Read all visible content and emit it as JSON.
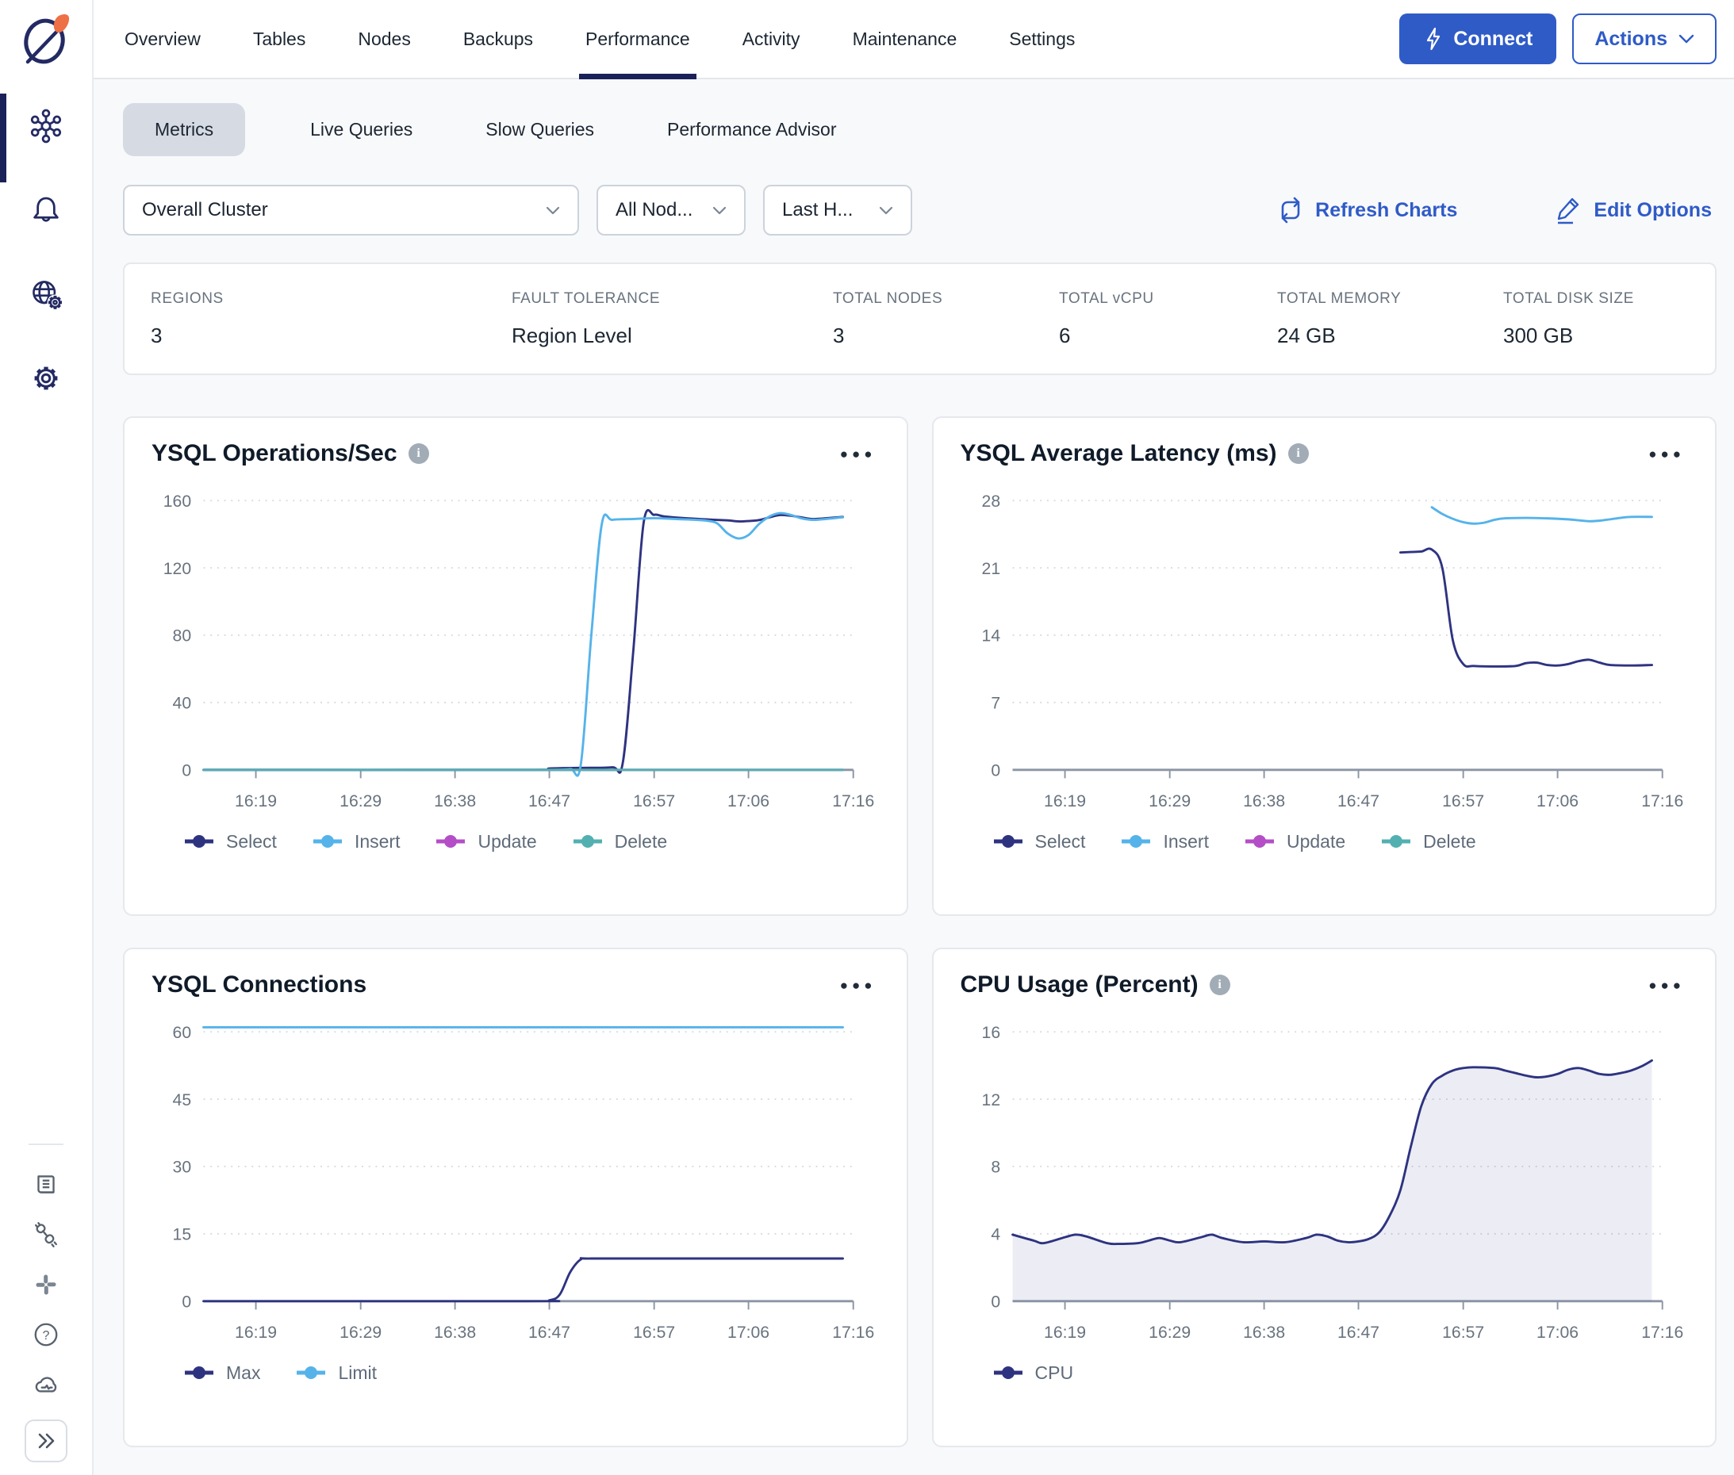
{
  "sidebar": {
    "icons": [
      "yugabyte-logo",
      "clusters-hub",
      "notifications-bell",
      "network-globe-gear",
      "settings-gear",
      "docs-book",
      "integrations-plug",
      "slack",
      "help-question",
      "cloud-status",
      "collapse-sidebar"
    ]
  },
  "topnav": {
    "tabs": [
      {
        "label": "Overview",
        "active": false
      },
      {
        "label": "Tables",
        "active": false
      },
      {
        "label": "Nodes",
        "active": false
      },
      {
        "label": "Backups",
        "active": false
      },
      {
        "label": "Performance",
        "active": true
      },
      {
        "label": "Activity",
        "active": false
      },
      {
        "label": "Maintenance",
        "active": false
      },
      {
        "label": "Settings",
        "active": false
      }
    ],
    "connect_button": "Connect",
    "actions_button": "Actions"
  },
  "subtabs": [
    {
      "label": "Metrics",
      "active": true
    },
    {
      "label": "Live Queries",
      "active": false
    },
    {
      "label": "Slow Queries",
      "active": false
    },
    {
      "label": "Performance Advisor",
      "active": false
    }
  ],
  "filters": {
    "cluster_select": "Overall Cluster",
    "node_select": "All Nod...",
    "time_select": "Last H..."
  },
  "toolbar": {
    "refresh_label": "Refresh Charts",
    "edit_label": "Edit Options"
  },
  "stats": [
    {
      "label": "REGIONS",
      "value": "3"
    },
    {
      "label": "FAULT TOLERANCE",
      "value": "Region Level"
    },
    {
      "label": "TOTAL NODES",
      "value": "3"
    },
    {
      "label": "TOTAL vCPU",
      "value": "6"
    },
    {
      "label": "TOTAL MEMORY",
      "value": "24 GB"
    },
    {
      "label": "TOTAL DISK SIZE",
      "value": "300 GB"
    }
  ],
  "colors": {
    "accent_blue": "#2f5bc7",
    "navy_series": "#2e3380",
    "light_blue_series": "#55b3ea",
    "magenta_series": "#b44ec6",
    "teal_series": "#53b0b1"
  },
  "chart_data": [
    {
      "type": "line",
      "title": "YSQL Operations/Sec",
      "has_info_icon": true,
      "x_domain": [
        "16:14",
        "17:16"
      ],
      "x_ticks": [
        "16:19",
        "16:29",
        "16:38",
        "16:47",
        "16:57",
        "17:06",
        "17:16"
      ],
      "ylim": [
        0,
        168
      ],
      "y_ticks": [
        0,
        40,
        80,
        120,
        160
      ],
      "grid": true,
      "legend_position": "bottom",
      "series": [
        {
          "name": "Select",
          "color": "#2e3380",
          "points": [
            [
              "16:14",
              0
            ],
            [
              "16:45",
              0
            ],
            [
              "16:47",
              0.8
            ],
            [
              "16:50",
              1.2
            ],
            [
              "16:53",
              1.5
            ],
            [
              "16:54",
              4
            ],
            [
              "16:55",
              70
            ],
            [
              "16:56",
              147
            ],
            [
              "16:57",
              151.5
            ],
            [
              "16:58",
              150.5
            ],
            [
              "17:00",
              149.5
            ],
            [
              "17:02",
              148.8
            ],
            [
              "17:04",
              148.2
            ],
            [
              "17:05",
              147.6
            ],
            [
              "17:06",
              147.8
            ],
            [
              "17:07",
              148.4
            ],
            [
              "17:08",
              150
            ],
            [
              "17:09",
              151.4
            ],
            [
              "17:10",
              151
            ],
            [
              "17:11",
              150
            ],
            [
              "17:12",
              149
            ],
            [
              "17:13",
              149.3
            ],
            [
              "17:15",
              150.3
            ]
          ]
        },
        {
          "name": "Insert",
          "color": "#55b3ea",
          "points": [
            [
              "16:14",
              0
            ],
            [
              "16:44",
              0
            ],
            [
              "16:47",
              0
            ],
            [
              "16:49",
              0.5
            ],
            [
              "16:50",
              3
            ],
            [
              "16:51",
              80
            ],
            [
              "16:52",
              146
            ],
            [
              "16:53",
              148.5
            ],
            [
              "16:55",
              149
            ],
            [
              "16:57",
              149.5
            ],
            [
              "16:59",
              149
            ],
            [
              "17:01",
              148.5
            ],
            [
              "17:02",
              148
            ],
            [
              "17:03",
              146.5
            ],
            [
              "17:04",
              140.5
            ],
            [
              "17:05",
              137.5
            ],
            [
              "17:06",
              139.5
            ],
            [
              "17:07",
              146
            ],
            [
              "17:08",
              150.5
            ],
            [
              "17:09",
              152.5
            ],
            [
              "17:10",
              151.5
            ],
            [
              "17:11",
              149.5
            ],
            [
              "17:12",
              148.5
            ],
            [
              "17:13",
              148.8
            ],
            [
              "17:15",
              150
            ]
          ]
        },
        {
          "name": "Update",
          "color": "#b44ec6",
          "points": [
            [
              "16:14",
              0
            ],
            [
              "17:15",
              0
            ]
          ]
        },
        {
          "name": "Delete",
          "color": "#53b0b1",
          "points": [
            [
              "16:14",
              0
            ],
            [
              "17:15",
              0
            ]
          ]
        }
      ]
    },
    {
      "type": "line",
      "title": "YSQL Average Latency (ms)",
      "has_info_icon": true,
      "x_domain": [
        "16:14",
        "17:16"
      ],
      "x_ticks": [
        "16:19",
        "16:29",
        "16:38",
        "16:47",
        "16:57",
        "17:06",
        "17:16"
      ],
      "ylim": [
        0,
        29.4
      ],
      "y_ticks": [
        0,
        7,
        14,
        21,
        28
      ],
      "grid": true,
      "legend_position": "bottom",
      "series": [
        {
          "name": "Select",
          "color": "#2e3380",
          "points": [
            [
              "16:51",
              22.6
            ],
            [
              "16:52",
              22.65
            ],
            [
              "16:53",
              22.7
            ],
            [
              "16:54",
              22.9
            ],
            [
              "16:55",
              21
            ],
            [
              "16:56",
              13.5
            ],
            [
              "16:57",
              11
            ],
            [
              "16:58",
              10.8
            ],
            [
              "17:00",
              10.75
            ],
            [
              "17:02",
              10.8
            ],
            [
              "17:03",
              11.1
            ],
            [
              "17:04",
              11.15
            ],
            [
              "17:05",
              10.9
            ],
            [
              "17:06",
              10.85
            ],
            [
              "17:07",
              11
            ],
            [
              "17:08",
              11.3
            ],
            [
              "17:09",
              11.45
            ],
            [
              "17:10",
              11.15
            ],
            [
              "17:11",
              10.9
            ],
            [
              "17:13",
              10.85
            ],
            [
              "17:15",
              10.9
            ]
          ]
        },
        {
          "name": "Insert",
          "color": "#55b3ea",
          "points": [
            [
              "16:54",
              27.3
            ],
            [
              "16:55",
              26.6
            ],
            [
              "16:56",
              26.1
            ],
            [
              "16:57",
              25.75
            ],
            [
              "16:58",
              25.6
            ],
            [
              "16:59",
              25.7
            ],
            [
              "17:00",
              26
            ],
            [
              "17:01",
              26.15
            ],
            [
              "17:03",
              26.2
            ],
            [
              "17:05",
              26.15
            ],
            [
              "17:07",
              26.05
            ],
            [
              "17:08",
              25.95
            ],
            [
              "17:09",
              25.85
            ],
            [
              "17:10",
              25.9
            ],
            [
              "17:11",
              26.05
            ],
            [
              "17:12",
              26.2
            ],
            [
              "17:13",
              26.3
            ],
            [
              "17:15",
              26.3
            ]
          ]
        },
        {
          "name": "Update",
          "color": "#b44ec6",
          "points": []
        },
        {
          "name": "Delete",
          "color": "#53b0b1",
          "points": []
        }
      ]
    },
    {
      "type": "line",
      "title": "YSQL Connections",
      "has_info_icon": false,
      "x_domain": [
        "16:14",
        "17:16"
      ],
      "x_ticks": [
        "16:19",
        "16:29",
        "16:38",
        "16:47",
        "16:57",
        "17:06",
        "17:16"
      ],
      "ylim": [
        0,
        63
      ],
      "y_ticks": [
        0,
        15,
        30,
        45,
        60
      ],
      "grid": true,
      "legend_position": "bottom",
      "series": [
        {
          "name": "Max",
          "color": "#2e3380",
          "points": [
            [
              "16:14",
              0
            ],
            [
              "16:45",
              0
            ],
            [
              "16:47",
              0.2
            ],
            [
              "16:48",
              1.5
            ],
            [
              "16:49",
              6.5
            ],
            [
              "16:50",
              9.3
            ],
            [
              "16:51",
              9.5
            ],
            [
              "17:00",
              9.5
            ],
            [
              "17:15",
              9.5
            ]
          ]
        },
        {
          "name": "Limit",
          "color": "#55b3ea",
          "points": [
            [
              "16:14",
              61
            ],
            [
              "17:15",
              61
            ]
          ]
        }
      ]
    },
    {
      "type": "area",
      "title": "CPU Usage (Percent)",
      "has_info_icon": true,
      "x_domain": [
        "16:14",
        "17:16"
      ],
      "x_ticks": [
        "16:19",
        "16:29",
        "16:38",
        "16:47",
        "16:57",
        "17:06",
        "17:16"
      ],
      "ylim": [
        0,
        16.8
      ],
      "y_ticks": [
        0,
        4,
        8,
        12,
        16
      ],
      "grid": true,
      "legend_position": "bottom",
      "series": [
        {
          "name": "CPU",
          "color": "#2e3380",
          "fill_opacity": 0.09,
          "points": [
            [
              "16:14",
              3.95
            ],
            [
              "16:16",
              3.6
            ],
            [
              "16:17",
              3.45
            ],
            [
              "16:19",
              3.8
            ],
            [
              "16:20",
              3.95
            ],
            [
              "16:21",
              3.85
            ],
            [
              "16:23",
              3.45
            ],
            [
              "16:24",
              3.4
            ],
            [
              "16:26",
              3.45
            ],
            [
              "16:27",
              3.6
            ],
            [
              "16:28",
              3.75
            ],
            [
              "16:29",
              3.6
            ],
            [
              "16:30",
              3.5
            ],
            [
              "16:32",
              3.8
            ],
            [
              "16:33",
              3.95
            ],
            [
              "16:34",
              3.75
            ],
            [
              "16:36",
              3.5
            ],
            [
              "16:38",
              3.55
            ],
            [
              "16:40",
              3.5
            ],
            [
              "16:42",
              3.75
            ],
            [
              "16:43",
              3.95
            ],
            [
              "16:44",
              3.85
            ],
            [
              "16:45",
              3.6
            ],
            [
              "16:46",
              3.5
            ],
            [
              "16:47",
              3.55
            ],
            [
              "16:48",
              3.7
            ],
            [
              "16:49",
              4.1
            ],
            [
              "16:50",
              5.1
            ],
            [
              "16:51",
              6.6
            ],
            [
              "16:52",
              9.2
            ],
            [
              "16:53",
              11.6
            ],
            [
              "16:54",
              12.9
            ],
            [
              "16:55",
              13.4
            ],
            [
              "16:56",
              13.7
            ],
            [
              "16:57",
              13.85
            ],
            [
              "16:58",
              13.9
            ],
            [
              "17:00",
              13.85
            ],
            [
              "17:01",
              13.7
            ],
            [
              "17:02",
              13.55
            ],
            [
              "17:03",
              13.4
            ],
            [
              "17:04",
              13.3
            ],
            [
              "17:05",
              13.35
            ],
            [
              "17:06",
              13.5
            ],
            [
              "17:07",
              13.75
            ],
            [
              "17:08",
              13.85
            ],
            [
              "17:09",
              13.7
            ],
            [
              "17:10",
              13.5
            ],
            [
              "17:11",
              13.45
            ],
            [
              "17:12",
              13.55
            ],
            [
              "17:13",
              13.7
            ],
            [
              "17:14",
              13.95
            ],
            [
              "17:15",
              14.3
            ]
          ]
        }
      ]
    }
  ]
}
